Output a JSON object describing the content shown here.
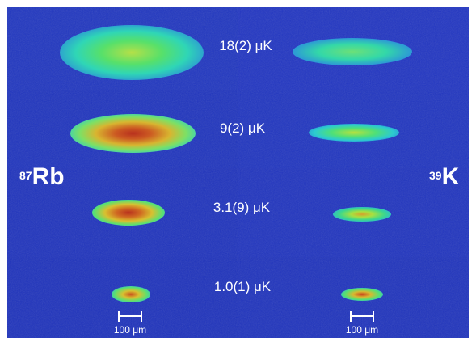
{
  "temperatures": [
    "18(2) μK",
    "9(2) μK",
    "3.1(9) μK",
    "1.0(1) μK"
  ],
  "species_left": {
    "mass_number": "87",
    "symbol": "Rb"
  },
  "species_right": {
    "mass_number": "39",
    "symbol": "K"
  },
  "scale_bar_left": "100 μm",
  "scale_bar_right": "100 μm",
  "colormap": [
    "#1a35c8",
    "#1f7fd6",
    "#28d0d0",
    "#3ee07a",
    "#a8e03a",
    "#d8b530",
    "#cc3a1e",
    "#8a1a10"
  ],
  "background_color": "#2238c4"
}
